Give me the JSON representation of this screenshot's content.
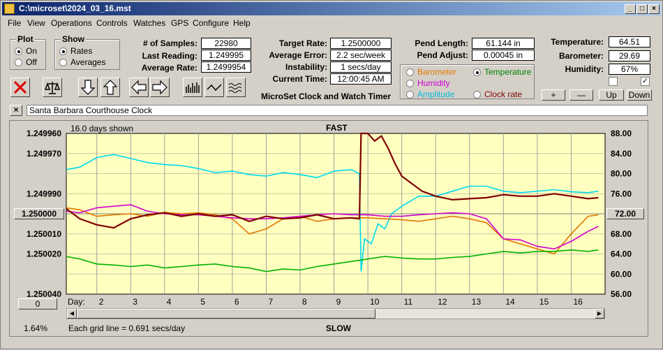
{
  "window": {
    "title": "C:\\microset\\2024_03_16.mst"
  },
  "menu": [
    "File",
    "View",
    "Operations",
    "Controls",
    "Watches",
    "GPS",
    "Configure",
    "Help"
  ],
  "plot_group": {
    "title": "Plot",
    "options": [
      "On",
      "Off"
    ],
    "selected": "On"
  },
  "show_group": {
    "title": "Show",
    "options": [
      "Rates",
      "Averages"
    ],
    "selected": "Rates"
  },
  "stats": {
    "samples_label": "# of Samples:",
    "samples": "22980",
    "last_label": "Last Reading:",
    "last": "1.249995",
    "avg_label": "Average Rate:",
    "avg": "1.2499954"
  },
  "rates": {
    "target_label": "Target Rate:",
    "target": "1.2500000",
    "error_label": "Average Error:",
    "error": "2.2 sec/week",
    "instab_label": "Instability:",
    "instab": "1 secs/day",
    "time_label": "Current Time:",
    "time": "12:00:45 AM",
    "caption": "MicroSet Clock and Watch Timer"
  },
  "pend": {
    "length_label": "Pend Length:",
    "length": "61.144 in",
    "adjust_label": "Pend Adjust:",
    "adjust": "0.00045 in"
  },
  "sensors_group": {
    "options": [
      {
        "label": "Barometer",
        "color": "#e07800",
        "selected": false
      },
      {
        "label": "Temperature",
        "color": "#008000",
        "selected": true
      },
      {
        "label": "Humidity",
        "color": "#d000d0",
        "selected": false
      },
      {
        "label": "Amplitude",
        "color": "#00b8d8",
        "selected": false
      },
      {
        "label": "Clock rate",
        "color": "#800000",
        "selected": false
      }
    ]
  },
  "env": {
    "temp_label": "Temperature:",
    "temp": "64.51",
    "baro_label": "Barometer:",
    "baro": "29.69",
    "hum_label": "Humidity:",
    "hum": "67%"
  },
  "adjust_buttons": [
    "+",
    "—",
    "Up",
    "Down"
  ],
  "watch": {
    "close": "×",
    "name": "Santa Barbara Courthouse Clock"
  },
  "chart": {
    "days_shown": "16.0 days shown",
    "fast_label": "FAST",
    "slow_label": "SLOW",
    "day_label": "Day:",
    "center_rate": "1.250000",
    "center_temp": "72.00",
    "left_scroll_value": "0",
    "pct": "1.64%",
    "grid_note": "Each grid line = 0.691 secs/day"
  },
  "chart_data": {
    "type": "line",
    "x_label": "Day:",
    "x_ticks": [
      2,
      3,
      4,
      5,
      6,
      7,
      8,
      9,
      10,
      11,
      12,
      13,
      14,
      15,
      16
    ],
    "x_range": [
      1.1,
      17
    ],
    "y_left_ticks": [
      "1.249960",
      "1.249970",
      "1.249990",
      "1.250010",
      "1.250020",
      "1.250040"
    ],
    "y_left_positions": [
      1.24996,
      1.24997,
      1.24999,
      1.25001,
      1.25002,
      1.25004
    ],
    "y_left_range": [
      1.24996,
      1.25004
    ],
    "y_right_ticks": [
      "88.00",
      "84.00",
      "80.00",
      "76.00",
      "68.00",
      "64.00",
      "60.00",
      "56.00"
    ],
    "y_right_values": [
      88,
      84,
      80,
      76,
      68,
      64,
      60,
      56
    ],
    "y_right_range": [
      56,
      88
    ],
    "series": [
      {
        "color": "#00d8f0",
        "points": [
          [
            1.1,
            80.8
          ],
          [
            1.5,
            81.3
          ],
          [
            2,
            83.2
          ],
          [
            2.5,
            83.8
          ],
          [
            3,
            83.0
          ],
          [
            3.5,
            82.2
          ],
          [
            4,
            81.8
          ],
          [
            4.5,
            81.6
          ],
          [
            5,
            81.0
          ],
          [
            5.5,
            80.2
          ],
          [
            6,
            80.5
          ],
          [
            6.5,
            79.8
          ],
          [
            7,
            79.5
          ],
          [
            7.5,
            80.2
          ],
          [
            8,
            79.8
          ],
          [
            8.5,
            79.2
          ],
          [
            9,
            80.5
          ],
          [
            9.5,
            80.8
          ],
          [
            9.75,
            80.0
          ],
          [
            9.8,
            60.5
          ],
          [
            9.9,
            67
          ],
          [
            10.1,
            66
          ],
          [
            10.3,
            70
          ],
          [
            10.5,
            69
          ],
          [
            10.7,
            72
          ],
          [
            11,
            73.5
          ],
          [
            11.5,
            75.5
          ],
          [
            12,
            75.5
          ],
          [
            12.5,
            76.5
          ],
          [
            13,
            77.5
          ],
          [
            13.5,
            77.5
          ],
          [
            14,
            76.5
          ],
          [
            14.5,
            76.2
          ],
          [
            15,
            76.5
          ],
          [
            15.5,
            76.8
          ],
          [
            16,
            76.4
          ],
          [
            16.5,
            76.2
          ],
          [
            16.8,
            76.5
          ]
        ]
      },
      {
        "color": "#e07800",
        "points": [
          [
            1.1,
            73.2
          ],
          [
            1.5,
            72.8
          ],
          [
            2,
            71.5
          ],
          [
            2.5,
            71.8
          ],
          [
            3,
            72.0
          ],
          [
            3.5,
            71.5
          ],
          [
            4,
            72.3
          ],
          [
            4.5,
            72.0
          ],
          [
            5,
            72.2
          ],
          [
            5.5,
            71.8
          ],
          [
            6,
            71.0
          ],
          [
            6.5,
            68.0
          ],
          [
            7,
            69.0
          ],
          [
            7.5,
            71.0
          ],
          [
            8,
            71.5
          ],
          [
            8.5,
            70.5
          ],
          [
            9,
            71.0
          ],
          [
            9.5,
            71.2
          ],
          [
            10,
            71.2
          ],
          [
            10.5,
            71.0
          ],
          [
            11,
            70.8
          ],
          [
            11.5,
            70.5
          ],
          [
            12,
            71.0
          ],
          [
            12.5,
            71.5
          ],
          [
            13,
            71.0
          ],
          [
            13.5,
            70.2
          ],
          [
            14,
            67.0
          ],
          [
            14.5,
            66.0
          ],
          [
            15,
            65.0
          ],
          [
            15.5,
            64.0
          ],
          [
            16,
            68.0
          ],
          [
            16.5,
            71.5
          ],
          [
            16.8,
            71.8
          ]
        ]
      },
      {
        "color": "#d000d0",
        "points": [
          [
            1.1,
            72.5
          ],
          [
            1.5,
            72.2
          ],
          [
            2,
            73.2
          ],
          [
            2.5,
            73.5
          ],
          [
            3,
            73.8
          ],
          [
            3.5,
            72.5
          ],
          [
            4,
            72.0
          ],
          [
            4.5,
            71.8
          ],
          [
            5,
            71.8
          ],
          [
            5.5,
            71.5
          ],
          [
            6,
            71.2
          ],
          [
            6.5,
            71.0
          ],
          [
            7,
            71.0
          ],
          [
            7.5,
            71.2
          ],
          [
            8,
            71.5
          ],
          [
            8.5,
            71.8
          ],
          [
            9,
            72.0
          ],
          [
            9.5,
            71.8
          ],
          [
            10,
            71.8
          ],
          [
            10.5,
            71.5
          ],
          [
            11,
            71.5
          ],
          [
            11.5,
            71.8
          ],
          [
            12,
            72.0
          ],
          [
            12.5,
            72.2
          ],
          [
            13,
            72.0
          ],
          [
            13.5,
            71.0
          ],
          [
            14,
            67.0
          ],
          [
            14.5,
            66.8
          ],
          [
            15,
            65.5
          ],
          [
            15.5,
            65.0
          ],
          [
            16,
            66.5
          ],
          [
            16.5,
            68.5
          ],
          [
            16.8,
            69.5
          ]
        ]
      },
      {
        "color": "#800000",
        "points": [
          [
            1.1,
            73.0
          ],
          [
            1.5,
            71.0
          ],
          [
            2,
            69.8
          ],
          [
            2.5,
            69.2
          ],
          [
            3,
            71.0
          ],
          [
            3.5,
            71.8
          ],
          [
            4,
            72.2
          ],
          [
            4.5,
            71.5
          ],
          [
            5,
            72.0
          ],
          [
            5.5,
            71.5
          ],
          [
            6,
            71.8
          ],
          [
            6.5,
            70.5
          ],
          [
            7,
            71.5
          ],
          [
            7.5,
            71.0
          ],
          [
            8,
            71.2
          ],
          [
            8.5,
            71.8
          ],
          [
            9,
            71.0
          ],
          [
            9.5,
            71.2
          ],
          [
            9.75,
            71.0
          ],
          [
            9.8,
            88
          ],
          [
            10,
            88
          ],
          [
            10.2,
            86.5
          ],
          [
            10.4,
            87.5
          ],
          [
            10.6,
            85.0
          ],
          [
            10.8,
            82.0
          ],
          [
            11,
            79.5
          ],
          [
            11.3,
            78.0
          ],
          [
            11.6,
            76.5
          ],
          [
            12,
            75.5
          ],
          [
            12.5,
            74.8
          ],
          [
            13,
            75.0
          ],
          [
            13.5,
            75.2
          ],
          [
            14,
            75.8
          ],
          [
            14.5,
            75.5
          ],
          [
            15,
            75.5
          ],
          [
            15.5,
            76.0
          ],
          [
            16,
            75.5
          ],
          [
            16.5,
            75.0
          ],
          [
            16.8,
            75.2
          ]
        ]
      },
      {
        "color": "#00b000",
        "points": [
          [
            1.1,
            63.5
          ],
          [
            1.5,
            63.0
          ],
          [
            2,
            62.0
          ],
          [
            2.5,
            61.8
          ],
          [
            3,
            61.5
          ],
          [
            3.5,
            61.8
          ],
          [
            4,
            61.2
          ],
          [
            4.5,
            61.5
          ],
          [
            5,
            61.8
          ],
          [
            5.5,
            62.0
          ],
          [
            6,
            61.5
          ],
          [
            6.5,
            61.2
          ],
          [
            7,
            60.5
          ],
          [
            7.5,
            61.0
          ],
          [
            8,
            60.8
          ],
          [
            8.5,
            61.5
          ],
          [
            9,
            62.0
          ],
          [
            9.5,
            62.5
          ],
          [
            10,
            63.0
          ],
          [
            10.5,
            63.5
          ],
          [
            11,
            63.2
          ],
          [
            11.5,
            63.0
          ],
          [
            12,
            63.0
          ],
          [
            12.5,
            63.3
          ],
          [
            13,
            63.5
          ],
          [
            13.5,
            64.0
          ],
          [
            14,
            64.5
          ],
          [
            14.5,
            64.2
          ],
          [
            15,
            64.5
          ],
          [
            15.5,
            64.5
          ],
          [
            16,
            64.8
          ],
          [
            16.5,
            64.5
          ],
          [
            16.8,
            64.8
          ]
        ]
      }
    ]
  }
}
